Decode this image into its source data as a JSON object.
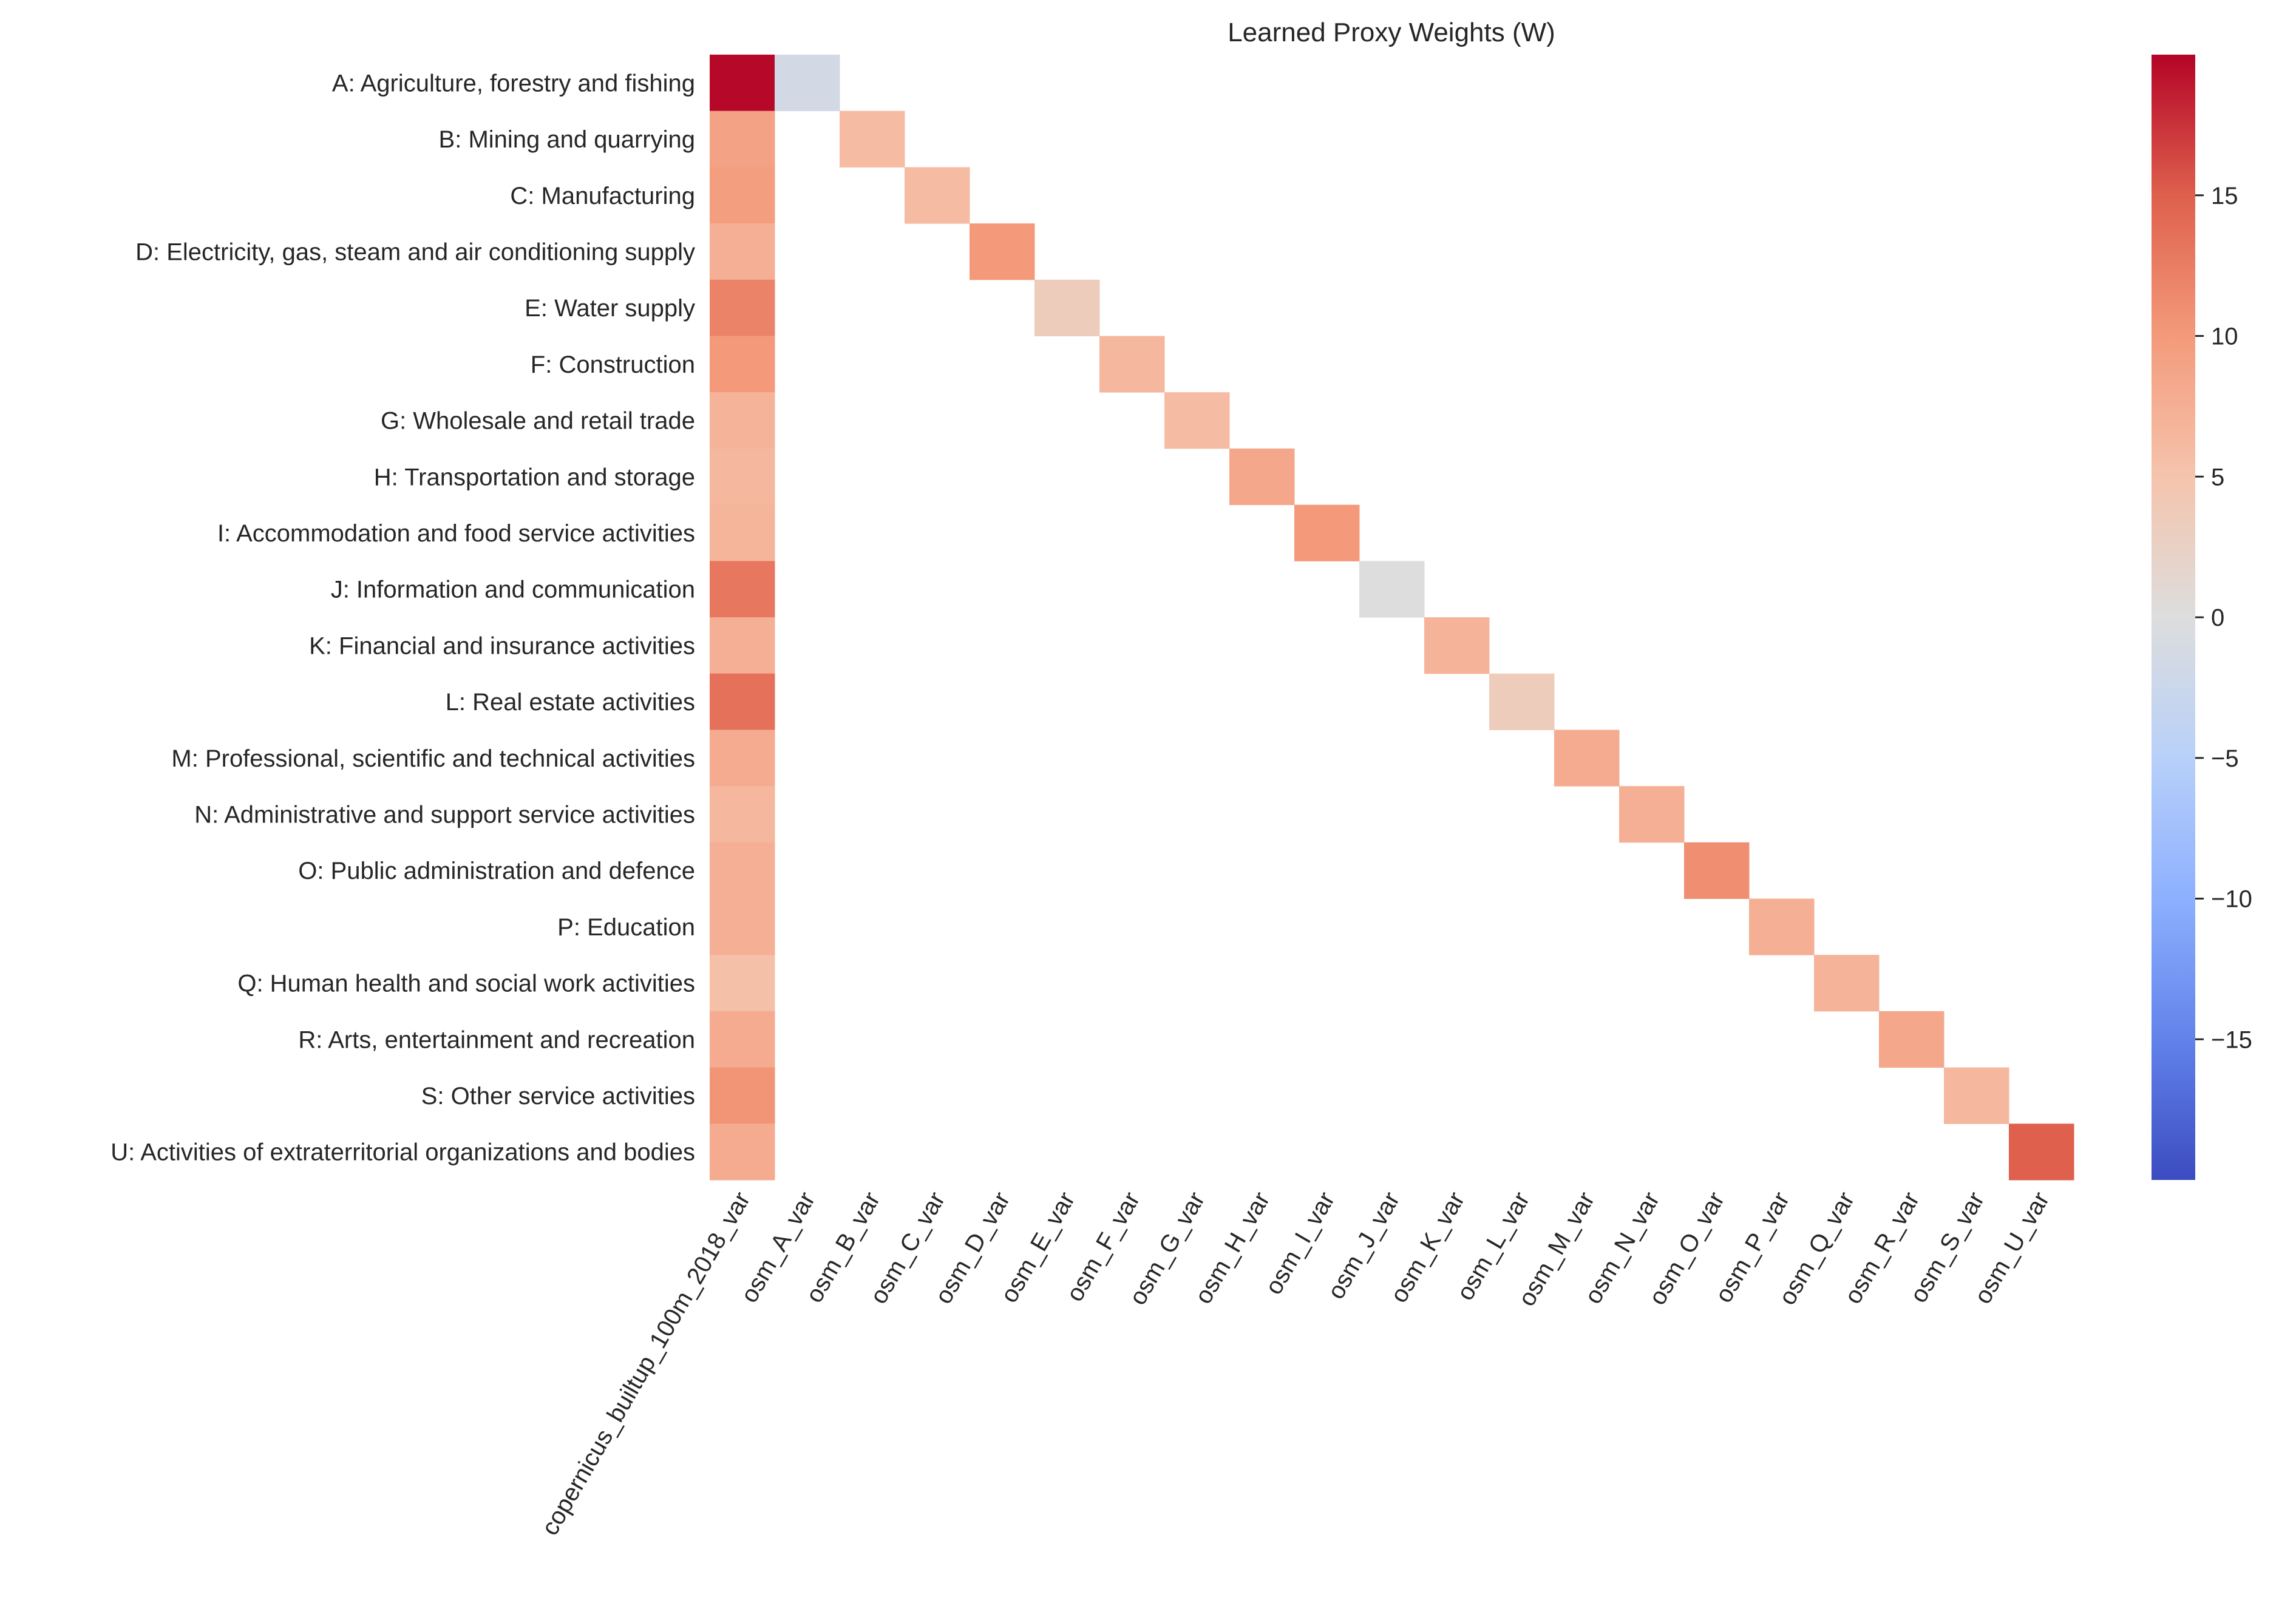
{
  "chart_data": {
    "type": "heatmap",
    "title": "Learned Proxy Weights (W)",
    "colormap": "coolwarm",
    "vmin": -20,
    "vmax": 20,
    "colorbar_ticks": [
      -15,
      -10,
      -5,
      0,
      5,
      10,
      15
    ],
    "rows": [
      "A: Agriculture, forestry and fishing",
      "B: Mining and quarrying",
      "C: Manufacturing",
      "D: Electricity, gas, steam and air conditioning supply",
      "E: Water supply",
      "F: Construction",
      "G: Wholesale and retail trade",
      "H: Transportation and storage",
      "I: Accommodation and food service activities",
      "J: Information and communication",
      "K: Financial and insurance activities",
      "L: Real estate activities",
      "M: Professional, scientific and technical activities",
      "N: Administrative and support service activities",
      "O: Public administration and defence",
      "P: Education",
      "Q: Human health and social work activities",
      "R: Arts, entertainment and recreation",
      "S: Other service activities",
      "U: Activities of extraterritorial organizations and bodies"
    ],
    "columns": [
      "copernicus_builtup_100m_2018_var",
      "osm_A_var",
      "osm_B_var",
      "osm_C_var",
      "osm_D_var",
      "osm_E_var",
      "osm_F_var",
      "osm_G_var",
      "osm_H_var",
      "osm_I_var",
      "osm_J_var",
      "osm_K_var",
      "osm_L_var",
      "osm_M_var",
      "osm_N_var",
      "osm_O_var",
      "osm_P_var",
      "osm_Q_var",
      "osm_R_var",
      "osm_S_var",
      "osm_U_var"
    ],
    "copernicus_values": [
      19.8,
      9.0,
      9.5,
      7.5,
      12.0,
      10.0,
      7.0,
      6.5,
      6.8,
      13.0,
      7.5,
      13.5,
      8.0,
      6.5,
      7.5,
      7.5,
      5.5,
      8.0,
      10.5,
      8.0
    ],
    "osm_diagonal_values": [
      -1.5,
      6.0,
      6.0,
      10.0,
      3.5,
      6.5,
      6.0,
      8.5,
      10.0,
      0.0,
      7.0,
      3.5,
      8.0,
      7.5,
      11.0,
      7.5,
      7.0,
      8.5,
      6.5,
      15.0
    ],
    "note_empty_cells": "non-diagonal osm cells are blank (no value)"
  }
}
